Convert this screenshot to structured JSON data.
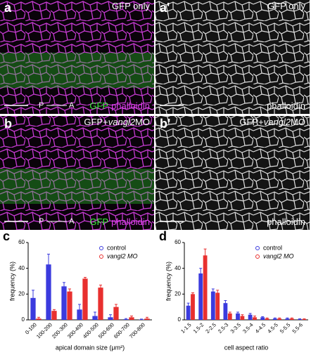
{
  "panels": [
    {
      "letter": "a",
      "label": [
        "GFP only"
      ],
      "axis": [
        "P",
        "A"
      ],
      "channels": [
        "GFP",
        "phalloidin"
      ]
    },
    {
      "letter": "a'",
      "label": [
        "GFP only"
      ],
      "channels": [
        "phalloidin"
      ]
    },
    {
      "letter": "b",
      "label": [
        "GFP+",
        "vangl2",
        "MO"
      ],
      "axis": [
        "P",
        "A"
      ],
      "channels": [
        "GFP",
        "phalloidin"
      ]
    },
    {
      "letter": "b'",
      "label": [
        "GFP+",
        "vangl2",
        "MO"
      ],
      "channels": [
        "phalloidin"
      ]
    }
  ],
  "chart_data": [
    {
      "type": "bar",
      "panel_label": "c",
      "xlabel": "apical domain size (μm²)",
      "ylabel": "frequency (%)",
      "categories": [
        "0-100",
        "100-200",
        "200-300",
        "300-400",
        "400-500",
        "500-600",
        "600-700",
        "700-800"
      ],
      "series": [
        {
          "name": "control",
          "color": "#3b3bde",
          "values": [
            17,
            43,
            26,
            8,
            3,
            2,
            0.5,
            0.3
          ],
          "errors": [
            6,
            8,
            3,
            4,
            3,
            2,
            0.5,
            0.3
          ]
        },
        {
          "name": "vangl2 MO",
          "color": "#e8302f",
          "values": [
            1,
            7,
            22,
            32,
            25,
            10,
            2,
            1
          ],
          "errors": [
            1,
            1,
            2,
            1,
            2,
            2,
            1,
            1
          ]
        }
      ],
      "ylim": [
        0,
        60
      ],
      "yticks": [
        0,
        20,
        40,
        60
      ]
    },
    {
      "type": "bar",
      "panel_label": "d",
      "xlabel": "cell aspect ratio",
      "ylabel": "frequency (%)",
      "categories": [
        "1-1.5",
        "1.5-2",
        "2-2.5",
        "2.5-3",
        "3-3.5",
        "3.5-4",
        "4-4.5",
        "4.5-5",
        "5-5.5",
        "5.5-6"
      ],
      "series": [
        {
          "name": "control",
          "color": "#3b3bde",
          "values": [
            11,
            36,
            22,
            13,
            5,
            4,
            2,
            1,
            1,
            0.5
          ],
          "errors": [
            2,
            4,
            2,
            2,
            1,
            1,
            0.5,
            0.5,
            0.5,
            0.3
          ]
        },
        {
          "name": "vangl2 MO",
          "color": "#e8302f",
          "values": [
            20,
            50,
            21,
            5,
            3,
            2,
            1,
            1,
            1,
            0.5
          ],
          "errors": [
            1,
            5,
            2,
            1,
            1,
            1,
            0.5,
            0.5,
            0.5,
            0.3
          ]
        }
      ],
      "ylim": [
        0,
        60
      ],
      "yticks": [
        0,
        20,
        40,
        60
      ]
    }
  ]
}
